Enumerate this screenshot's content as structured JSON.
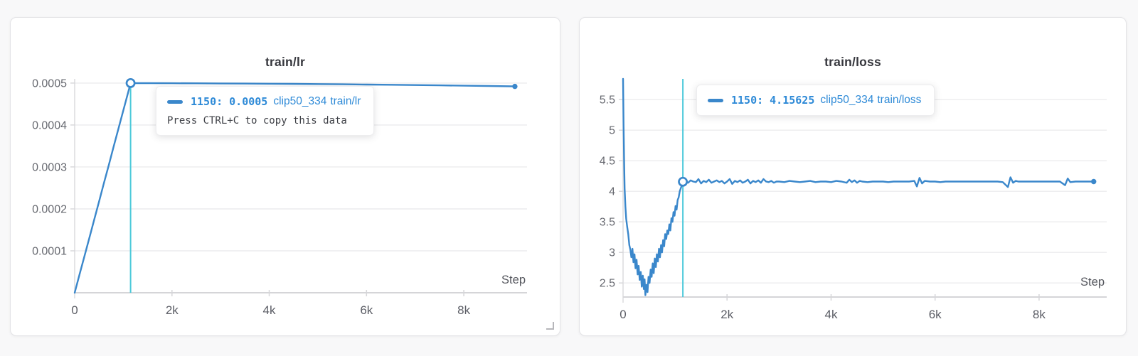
{
  "colors": {
    "line": "#3a87cb",
    "blue_text": "#2e8ad7",
    "crosshair": "#4cc9da",
    "grid": "#ececee",
    "axis": "#cfcfd3",
    "axis_tick": "#d6d6d9"
  },
  "chart_data": [
    {
      "type": "line",
      "title": "train/lr",
      "xlabel": "Step",
      "x_tick_values": [
        0,
        2000,
        4000,
        6000,
        8000
      ],
      "x_tick_labels": [
        "0",
        "2k",
        "4k",
        "6k",
        "8k"
      ],
      "y_tick_values": [
        0.0001,
        0.0002,
        0.0003,
        0.0004,
        0.0005
      ],
      "y_tick_labels": [
        "0.0001",
        "0.0002",
        "0.0003",
        "0.0004",
        "0.0005"
      ],
      "xlim": [
        0,
        9300
      ],
      "ylim": [
        0,
        0.00051
      ],
      "legend_position": "none",
      "grid": "horizontal",
      "cursor": {
        "step": 1150,
        "value": 0.0005,
        "full_height": false
      },
      "series": [
        {
          "name": "clip50_334",
          "points": [
            [
              0,
              0
            ],
            [
              100,
              4.35e-05
            ],
            [
              200,
              8.7e-05
            ],
            [
              300,
              0.00013
            ],
            [
              400,
              0.000174
            ],
            [
              500,
              0.000217
            ],
            [
              600,
              0.000261
            ],
            [
              700,
              0.000304
            ],
            [
              800,
              0.000348
            ],
            [
              900,
              0.000391
            ],
            [
              1000,
              0.000435
            ],
            [
              1100,
              0.000478
            ],
            [
              1150,
              0.0005
            ],
            [
              1500,
              0.0004999
            ],
            [
              2000,
              0.0004997
            ],
            [
              2500,
              0.0004995
            ],
            [
              3000,
              0.0004992
            ],
            [
              3500,
              0.0004989
            ],
            [
              4000,
              0.0004985
            ],
            [
              4500,
              0.0004981
            ],
            [
              5000,
              0.0004976
            ],
            [
              5500,
              0.0004971
            ],
            [
              6000,
              0.0004965
            ],
            [
              6500,
              0.0004959
            ],
            [
              7000,
              0.0004952
            ],
            [
              7500,
              0.0004945
            ],
            [
              8000,
              0.0004938
            ],
            [
              8500,
              0.000493
            ],
            [
              9000,
              0.0004922
            ],
            [
              9050,
              0.0004921
            ]
          ]
        }
      ],
      "tooltip": {
        "step_label": "1150:",
        "value": "0.0005",
        "run": "clip50_334",
        "metric": "train/lr",
        "hint": "Press CTRL+C to copy this data"
      }
    },
    {
      "type": "line",
      "title": "train/loss",
      "xlabel": "Step",
      "x_tick_values": [
        0,
        2000,
        4000,
        6000,
        8000
      ],
      "x_tick_labels": [
        "0",
        "2k",
        "4k",
        "6k",
        "8k"
      ],
      "y_tick_values": [
        2.5,
        3,
        3.5,
        4,
        4.5,
        5,
        5.5
      ],
      "y_tick_labels": [
        "2.5",
        "3",
        "3.5",
        "4",
        "4.5",
        "5",
        "5.5"
      ],
      "xlim": [
        0,
        9300
      ],
      "ylim": [
        2.27,
        5.84
      ],
      "legend_position": "none",
      "grid": "horizontal",
      "cursor": {
        "step": 1150,
        "value": 4.15625,
        "full_height": true
      },
      "series": [
        {
          "name": "clip50_334",
          "points": [
            [
              0,
              5.84
            ],
            [
              10,
              5.1
            ],
            [
              20,
              4.5
            ],
            [
              30,
              4.05
            ],
            [
              45,
              3.75
            ],
            [
              60,
              3.55
            ],
            [
              80,
              3.42
            ],
            [
              100,
              3.3
            ],
            [
              120,
              3.12
            ],
            [
              140,
              3.05
            ],
            [
              160,
              2.92
            ],
            [
              180,
              3.06
            ],
            [
              200,
              2.84
            ],
            [
              220,
              2.97
            ],
            [
              240,
              2.74
            ],
            [
              260,
              2.88
            ],
            [
              280,
              2.64
            ],
            [
              300,
              2.78
            ],
            [
              320,
              2.55
            ],
            [
              340,
              2.68
            ],
            [
              360,
              2.44
            ],
            [
              380,
              2.62
            ],
            [
              400,
              2.4
            ],
            [
              415,
              2.56
            ],
            [
              430,
              2.3
            ],
            [
              450,
              2.47
            ],
            [
              470,
              2.35
            ],
            [
              490,
              2.6
            ],
            [
              510,
              2.5
            ],
            [
              530,
              2.72
            ],
            [
              550,
              2.6
            ],
            [
              570,
              2.82
            ],
            [
              590,
              2.66
            ],
            [
              610,
              2.9
            ],
            [
              630,
              2.76
            ],
            [
              650,
              2.97
            ],
            [
              670,
              2.85
            ],
            [
              690,
              3.06
            ],
            [
              710,
              2.92
            ],
            [
              730,
              3.12
            ],
            [
              750,
              3.0
            ],
            [
              770,
              3.2
            ],
            [
              790,
              3.1
            ],
            [
              810,
              3.3
            ],
            [
              830,
              3.22
            ],
            [
              850,
              3.36
            ],
            [
              870,
              3.3
            ],
            [
              890,
              3.46
            ],
            [
              910,
              3.36
            ],
            [
              930,
              3.56
            ],
            [
              950,
              3.5
            ],
            [
              970,
              3.66
            ],
            [
              990,
              3.6
            ],
            [
              1010,
              3.76
            ],
            [
              1030,
              3.7
            ],
            [
              1050,
              3.86
            ],
            [
              1070,
              3.9
            ],
            [
              1090,
              4.0
            ],
            [
              1110,
              4.05
            ],
            [
              1130,
              4.1
            ],
            [
              1150,
              4.15625
            ],
            [
              1200,
              4.17
            ],
            [
              1250,
              4.14
            ],
            [
              1300,
              4.18
            ],
            [
              1350,
              4.16
            ],
            [
              1400,
              4.15
            ],
            [
              1450,
              4.2
            ],
            [
              1500,
              4.13
            ],
            [
              1550,
              4.17
            ],
            [
              1600,
              4.15
            ],
            [
              1650,
              4.19
            ],
            [
              1700,
              4.14
            ],
            [
              1750,
              4.16
            ],
            [
              1800,
              4.18
            ],
            [
              1850,
              4.15
            ],
            [
              1900,
              4.17
            ],
            [
              1950,
              4.13
            ],
            [
              2000,
              4.16
            ],
            [
              2050,
              4.2
            ],
            [
              2100,
              4.12
            ],
            [
              2150,
              4.17
            ],
            [
              2200,
              4.15
            ],
            [
              2250,
              4.18
            ],
            [
              2300,
              4.14
            ],
            [
              2350,
              4.16
            ],
            [
              2400,
              4.19
            ],
            [
              2450,
              4.13
            ],
            [
              2500,
              4.17
            ],
            [
              2550,
              4.15
            ],
            [
              2600,
              4.18
            ],
            [
              2650,
              4.14
            ],
            [
              2700,
              4.2
            ],
            [
              2750,
              4.16
            ],
            [
              2800,
              4.15
            ],
            [
              2850,
              4.17
            ],
            [
              2900,
              4.14
            ],
            [
              2950,
              4.16
            ],
            [
              3000,
              4.16
            ],
            [
              3100,
              4.15
            ],
            [
              3200,
              4.17
            ],
            [
              3300,
              4.16
            ],
            [
              3400,
              4.15
            ],
            [
              3500,
              4.16
            ],
            [
              3600,
              4.17
            ],
            [
              3700,
              4.15
            ],
            [
              3800,
              4.16
            ],
            [
              3900,
              4.16
            ],
            [
              4000,
              4.15
            ],
            [
              4100,
              4.17
            ],
            [
              4200,
              4.16
            ],
            [
              4300,
              4.14
            ],
            [
              4350,
              4.19
            ],
            [
              4400,
              4.15
            ],
            [
              4450,
              4.18
            ],
            [
              4500,
              4.14
            ],
            [
              4550,
              4.17
            ],
            [
              4600,
              4.16
            ],
            [
              4700,
              4.15
            ],
            [
              4800,
              4.16
            ],
            [
              4900,
              4.16
            ],
            [
              5000,
              4.16
            ],
            [
              5100,
              4.15
            ],
            [
              5200,
              4.16
            ],
            [
              5300,
              4.16
            ],
            [
              5400,
              4.16
            ],
            [
              5500,
              4.16
            ],
            [
              5600,
              4.17
            ],
            [
              5650,
              4.08
            ],
            [
              5700,
              4.22
            ],
            [
              5750,
              4.13
            ],
            [
              5800,
              4.17
            ],
            [
              5900,
              4.16
            ],
            [
              6000,
              4.16
            ],
            [
              6100,
              4.15
            ],
            [
              6200,
              4.16
            ],
            [
              6300,
              4.16
            ],
            [
              6400,
              4.16
            ],
            [
              6500,
              4.16
            ],
            [
              6600,
              4.16
            ],
            [
              6700,
              4.16
            ],
            [
              6800,
              4.16
            ],
            [
              6900,
              4.16
            ],
            [
              7000,
              4.16
            ],
            [
              7100,
              4.16
            ],
            [
              7200,
              4.16
            ],
            [
              7300,
              4.15
            ],
            [
              7400,
              4.07
            ],
            [
              7450,
              4.23
            ],
            [
              7500,
              4.14
            ],
            [
              7550,
              4.17
            ],
            [
              7600,
              4.16
            ],
            [
              7700,
              4.16
            ],
            [
              7800,
              4.16
            ],
            [
              7900,
              4.16
            ],
            [
              8000,
              4.16
            ],
            [
              8100,
              4.16
            ],
            [
              8200,
              4.16
            ],
            [
              8300,
              4.16
            ],
            [
              8400,
              4.16
            ],
            [
              8500,
              4.1
            ],
            [
              8550,
              4.21
            ],
            [
              8600,
              4.15
            ],
            [
              8700,
              4.16
            ],
            [
              8800,
              4.16
            ],
            [
              8900,
              4.16
            ],
            [
              9000,
              4.16
            ],
            [
              9050,
              4.16
            ]
          ]
        }
      ],
      "tooltip": {
        "step_label": "1150:",
        "value": "4.15625",
        "run": "clip50_334",
        "metric": "train/loss"
      }
    }
  ]
}
